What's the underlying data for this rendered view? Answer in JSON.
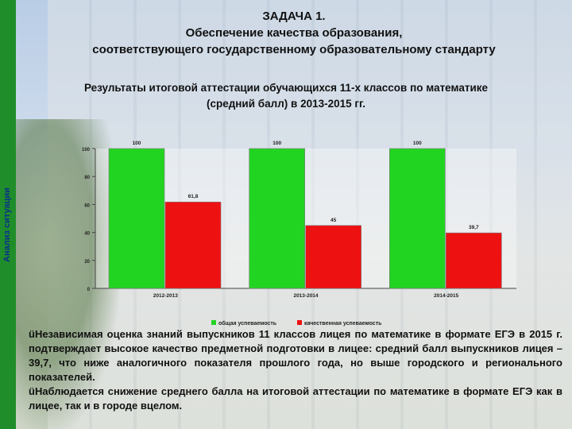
{
  "slide": {
    "side_label": "Анализ ситуации",
    "title_line1": "ЗАДАЧА 1.",
    "title_line2": "Обеспечение качества образования,",
    "title_line3": "соответствующего государственному образовательному стандарту",
    "notes": [
      "üНезависимая оценка знаний выпускников 11 классов лицея по математике в формате ЕГЭ в 2015 г. подтверждает высокое качество предметной подготовки в лицее: средний балл выпускников лицея – 39,7, что ниже аналогичного показателя прошлого года, но выше городского и регионального показателей.",
      "üНаблюдается снижение среднего балла на итоговой аттестации по математике в формате ЕГЭ как в лицее, так и в городе вцелом."
    ]
  },
  "chart_data": {
    "type": "bar",
    "title": "Результаты итоговой аттестации обучающихся 11-х классов по математике",
    "subtitle": "(средний балл) в 2013-2015 гг.",
    "categories": [
      "2012-2013",
      "2013-2014",
      "2014-2015"
    ],
    "series": [
      {
        "name": "общая успеваемость",
        "values": [
          100,
          100,
          100
        ],
        "labels": [
          "100",
          "100",
          "100"
        ],
        "color": "#22d422"
      },
      {
        "name": "качественная успеваемость",
        "values": [
          61.8,
          45,
          39.7
        ],
        "labels": [
          "61,8",
          "45",
          "39,7"
        ],
        "color": "#ee1111"
      }
    ],
    "yticks": [
      0,
      20,
      40,
      60,
      80,
      100
    ],
    "ylim": [
      0,
      100
    ],
    "legend_position": "bottom",
    "grid": false
  }
}
